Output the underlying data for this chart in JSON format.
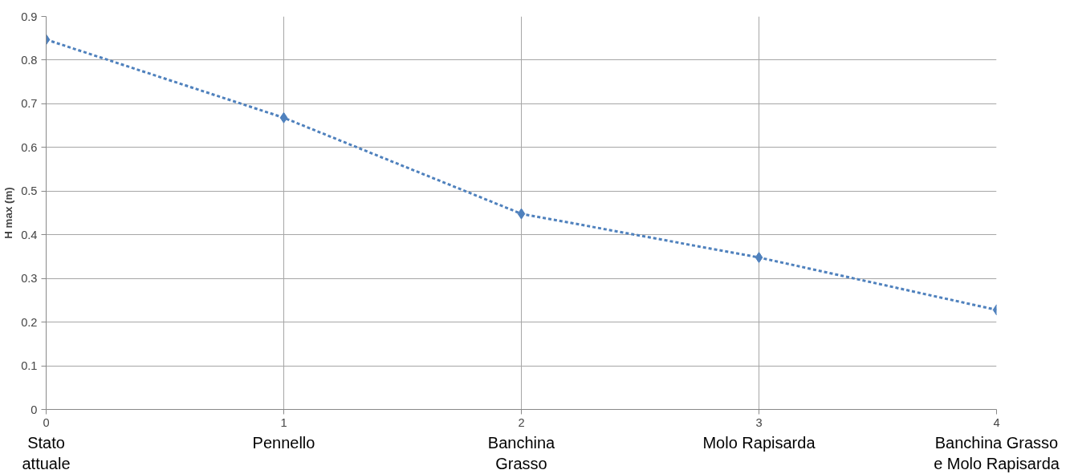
{
  "chart_data": {
    "type": "line",
    "ylabel": "H max (m)",
    "x": [
      0,
      1,
      2,
      3,
      4
    ],
    "series": [
      {
        "color": "#4f81bd",
        "values": [
          0.847,
          0.668,
          0.448,
          0.348,
          0.228
        ]
      }
    ],
    "xlim": [
      0,
      4
    ],
    "xticks": [
      0,
      1,
      2,
      3,
      4
    ],
    "ylim": [
      0,
      0.9
    ],
    "yticks": [
      0,
      0.1,
      0.2,
      0.3,
      0.4,
      0.5,
      0.6,
      0.7,
      0.8,
      0.9
    ],
    "grid": true,
    "marker": "diamond",
    "line_style": "dashed",
    "annotations": [
      "Stato\nattuale",
      "Pennello",
      "Banchina\nGrasso",
      "Molo Rapisarda",
      "Banchina Grasso\ne Molo Rapisarda"
    ]
  }
}
